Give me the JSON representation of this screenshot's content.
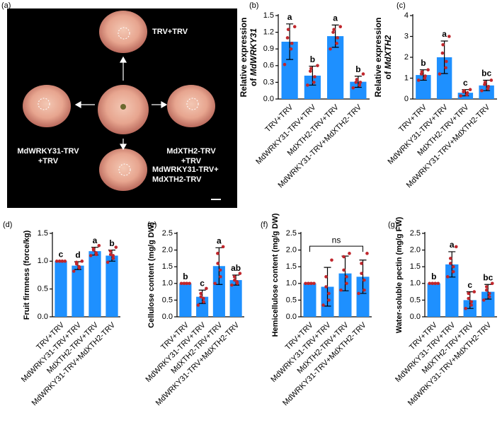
{
  "panel_a": {
    "label": "(a)",
    "treatments": [
      [
        "TRV+TRV"
      ],
      [
        "MdWRKY31-TRV",
        "+TRV"
      ],
      [
        "MdXTH2-TRV",
        "+TRV"
      ],
      [
        "MdWRKY31-TRV+",
        "MdXTH2-TRV"
      ]
    ]
  },
  "chart_data": [
    {
      "type": "bar",
      "panel": "(b)",
      "ylabel": "Relative expression",
      "ylabel_prefix": "of ",
      "ylabel_italic": "MdWRKY31",
      "color": "#1e90ff",
      "categories": [
        "TRV+TRV",
        "MdWRKY31-TRV+TRV",
        "MdXTH2-TRV+TRV",
        "MdWRKY31-TRV+MdXTH2-TRV"
      ],
      "values": [
        1.03,
        0.42,
        1.13,
        0.31
      ],
      "errors": [
        0.32,
        0.17,
        0.2,
        0.1
      ],
      "letters": [
        "a",
        "b",
        "a",
        "b"
      ],
      "points": [
        [
          0.62,
          0.9,
          1.0,
          1.1,
          1.25,
          1.3
        ],
        [
          0.25,
          0.3,
          0.4,
          0.5,
          0.55,
          0.6
        ],
        [
          0.9,
          1.0,
          1.1,
          1.2,
          1.25,
          1.3
        ],
        [
          0.2,
          0.25,
          0.3,
          0.3,
          0.35,
          0.45
        ]
      ],
      "ylim": [
        0,
        1.5
      ],
      "yticks": [
        {
          "value": 0,
          "label": "0.0"
        },
        0.3,
        0.6,
        0.9,
        1.2,
        1.5
      ]
    },
    {
      "type": "bar",
      "panel": "(c)",
      "ylabel": "Relative expression",
      "ylabel_prefix": "of ",
      "ylabel_italic": "MdXTH2",
      "color": "#1e90ff",
      "categories": [
        "TRV+TRV",
        "MdWRKY31-TRV+TRV",
        "MdXTH2-TRV+TRV",
        "MdWRKY31-TRV+MdXTH2-TRV"
      ],
      "values": [
        1.15,
        2.0,
        0.3,
        0.65
      ],
      "errors": [
        0.25,
        0.78,
        0.15,
        0.25
      ],
      "letters": [
        "b",
        "a",
        "c",
        "bc"
      ],
      "points": [
        [
          0.9,
          1.0,
          1.1,
          1.2,
          1.3,
          1.4
        ],
        [
          1.2,
          1.5,
          1.8,
          2.2,
          2.6,
          3.0
        ],
        [
          0.15,
          0.2,
          0.3,
          0.35,
          0.4,
          0.45
        ],
        [
          0.4,
          0.5,
          0.6,
          0.7,
          0.8,
          0.9
        ]
      ],
      "ylim": [
        0,
        4
      ],
      "yticks": [
        0,
        1,
        2,
        3,
        4
      ]
    },
    {
      "type": "bar",
      "panel": "(d)",
      "ylabel": "Fruit firmness (force/kg)",
      "color": "#1e90ff",
      "categories": [
        "TRV+TRV",
        "MdWRKY31-TRV+TRV",
        "MdXTH2-TRV+TRV",
        "MdWRKY31-TRV+MdXTH2-TRV"
      ],
      "values": [
        1.0,
        0.92,
        1.18,
        1.1
      ],
      "errors": [
        0,
        0.07,
        0.07,
        0.1
      ],
      "letters": [
        "c",
        "d",
        "a",
        "b"
      ],
      "points": [
        [
          1,
          1,
          1,
          1,
          1,
          1
        ],
        [
          0.82,
          0.88,
          0.9,
          0.95,
          0.98,
          1.0
        ],
        [
          1.1,
          1.12,
          1.15,
          1.2,
          1.22,
          1.28
        ],
        [
          0.98,
          1.05,
          1.1,
          1.12,
          1.18,
          1.25
        ]
      ],
      "ylim": [
        0,
        1.5
      ],
      "yticks": [
        {
          "value": 0,
          "label": "0.0"
        },
        0.5,
        {
          "value": 1,
          "label": "1.0"
        },
        1.5
      ]
    },
    {
      "type": "bar",
      "panel": "(e)",
      "ylabel": "Cellulose content (mg/g DW)",
      "color": "#1e90ff",
      "categories": [
        "TRV+TRV",
        "MdWRKY31-TRV+TRV",
        "MdXTH2-TRV+TRV",
        "MdWRKY31-TRV+MdXTH2-TRV"
      ],
      "values": [
        1.0,
        0.6,
        1.52,
        1.1
      ],
      "errors": [
        0,
        0.2,
        0.55,
        0.15
      ],
      "letters": [
        "b",
        "c",
        "a",
        "ab"
      ],
      "points": [
        [
          1,
          1,
          1,
          1,
          1,
          1
        ],
        [
          0.35,
          0.45,
          0.55,
          0.6,
          0.7,
          0.85
        ],
        [
          1.0,
          1.2,
          1.4,
          1.6,
          1.9,
          2.1
        ],
        [
          0.95,
          1.0,
          1.05,
          1.1,
          1.2,
          1.3
        ]
      ],
      "ylim": [
        0,
        2.5
      ],
      "yticks": [
        {
          "value": 0,
          "label": "0.0"
        },
        0.5,
        {
          "value": 1,
          "label": "1.0"
        },
        1.5,
        {
          "value": 2,
          "label": "2.0"
        },
        2.5
      ]
    },
    {
      "type": "bar",
      "panel": "(f)",
      "ylabel": "Hemicellulose content (mg/g DW)",
      "color": "#1e90ff",
      "bracket_label": "ns",
      "categories": [
        "TRV+TRV",
        "MdWRKY31-TRV+TRV",
        "MdXTH2-TRV+TRV",
        "MdWRKY31-TRV+MdXTH2-TRV"
      ],
      "values": [
        1.0,
        0.9,
        1.3,
        1.2
      ],
      "errors": [
        0,
        0.58,
        0.52,
        0.5
      ],
      "points": [
        [
          1,
          1,
          1,
          1,
          1,
          1
        ],
        [
          0.35,
          0.5,
          0.7,
          0.9,
          1.2,
          1.7
        ],
        [
          0.8,
          1.0,
          1.2,
          1.4,
          1.8,
          1.9
        ],
        [
          0.7,
          0.8,
          1.1,
          1.3,
          1.6,
          1.9
        ]
      ],
      "ylim": [
        0,
        2.5
      ],
      "yticks": [
        {
          "value": 0,
          "label": "0.0"
        },
        0.5,
        {
          "value": 1,
          "label": "1.0"
        },
        1.5,
        {
          "value": 2,
          "label": "2.0"
        },
        2.5
      ]
    },
    {
      "type": "bar",
      "panel": "(g)",
      "ylabel": "Water-soluble pectin (mg/g FW)",
      "color": "#1e90ff",
      "categories": [
        "TRV+TRV",
        "MdWRKY31-TRV+TRV",
        "MdXTH2-TRV+TRV",
        "MdWRKY31-TRV+MdXTH2-TRV"
      ],
      "values": [
        1.0,
        1.57,
        0.5,
        0.75
      ],
      "errors": [
        0,
        0.38,
        0.25,
        0.22
      ],
      "letters": [
        "b",
        "a",
        "c",
        "bc"
      ],
      "points": [
        [
          1,
          1,
          1,
          1,
          1,
          1
        ],
        [
          1.2,
          1.35,
          1.5,
          1.6,
          1.75,
          2.1
        ],
        [
          0.25,
          0.35,
          0.45,
          0.55,
          0.7,
          0.75
        ],
        [
          0.5,
          0.6,
          0.7,
          0.8,
          0.9,
          1.0
        ]
      ],
      "ylim": [
        0,
        2.5
      ],
      "yticks": [
        {
          "value": 0,
          "label": "0.0"
        },
        0.5,
        {
          "value": 1,
          "label": "1.0"
        },
        1.5,
        {
          "value": 2,
          "label": "2.0"
        },
        2.5
      ]
    }
  ]
}
